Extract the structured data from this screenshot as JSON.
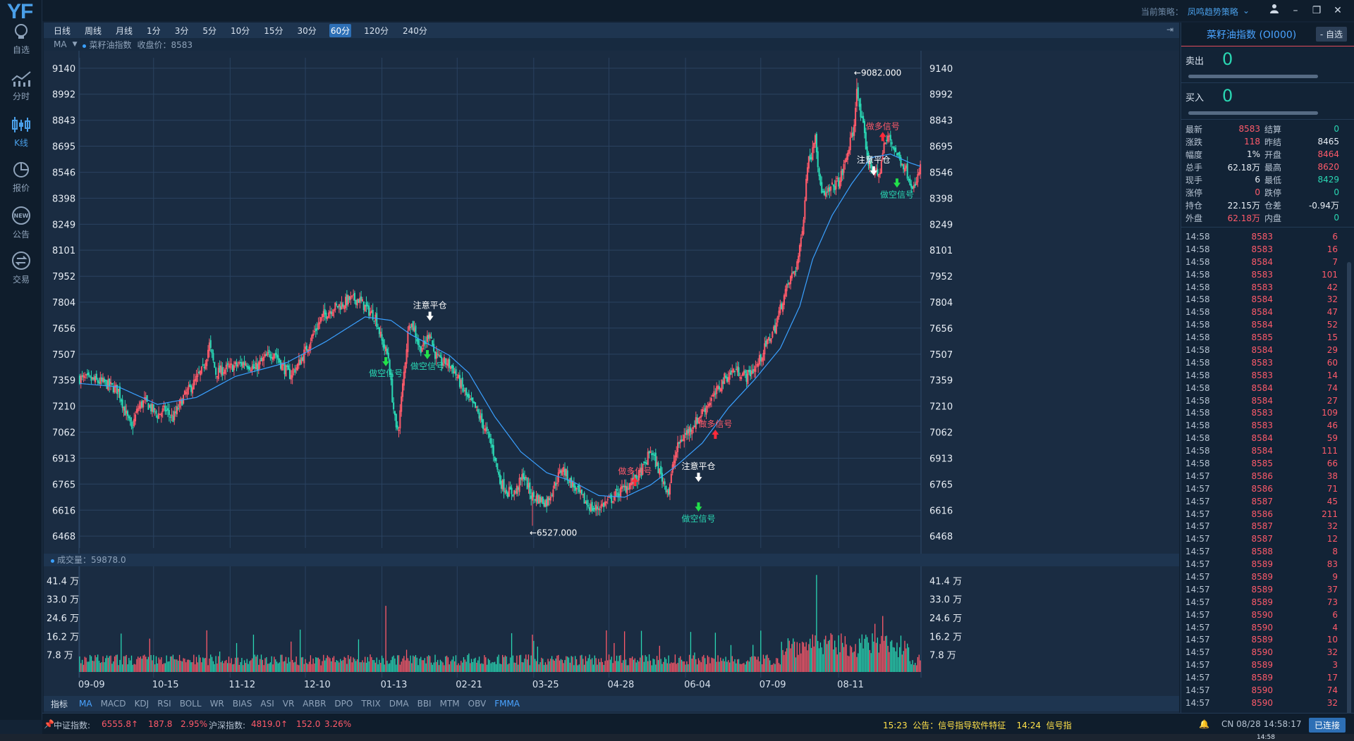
{
  "app": {
    "logo": "YF"
  },
  "sidebar": {
    "items": [
      {
        "label": "自选",
        "icon": "lightbulb-icon"
      },
      {
        "label": "分时",
        "icon": "line-chart-icon"
      },
      {
        "label": "K线",
        "icon": "candlestick-icon",
        "active": true
      },
      {
        "label": "报价",
        "icon": "pie-chart-icon"
      },
      {
        "label": "公告",
        "icon": "new-badge-icon"
      },
      {
        "label": "交易",
        "icon": "exchange-icon"
      }
    ]
  },
  "topbar": {
    "strategy_label": "当前策略：",
    "strategy_value": "凤鸣趋势策略"
  },
  "periods": [
    "日线",
    "周线",
    "月线",
    "1分",
    "3分",
    "5分",
    "10分",
    "15分",
    "30分",
    "60分",
    "120分",
    "240分"
  ],
  "active_period": "60分",
  "ma_bar": {
    "label": "MA",
    "series": "菜籽油指数",
    "close_label": "收盘价：8583"
  },
  "volume_bar": {
    "label": "成交量：59878.0"
  },
  "indicators": [
    "指标",
    "MA",
    "MACD",
    "KDJ",
    "RSI",
    "BOLL",
    "WR",
    "BIAS",
    "ASI",
    "VR",
    "ARBR",
    "DPO",
    "TRIX",
    "DMA",
    "BBI",
    "MTM",
    "OBV",
    "FMMA"
  ],
  "active_indicator": "MA",
  "chart_data": {
    "type": "candlestick",
    "title": "菜籽油指数",
    "x_tick_labels": [
      "09-09",
      "10-15",
      "11-12",
      "12-10",
      "01-13",
      "02-21",
      "03-25",
      "04-28",
      "06-04",
      "07-09",
      "08-11"
    ],
    "y_ticks": [
      9140,
      8992,
      8843,
      8695,
      8546,
      8398,
      8249,
      8101,
      7952,
      7804,
      7656,
      7507,
      7359,
      7210,
      7062,
      6913,
      6765,
      6616,
      6468
    ],
    "ylim": [
      6400,
      9200
    ],
    "close_path": [
      [
        0,
        7370
      ],
      [
        10,
        7360
      ],
      [
        20,
        7340
      ],
      [
        30,
        7300
      ],
      [
        35,
        7180
      ],
      [
        40,
        7080
      ],
      [
        45,
        7200
      ],
      [
        50,
        7240
      ],
      [
        55,
        7200
      ],
      [
        60,
        7160
      ],
      [
        66,
        7190
      ],
      [
        72,
        7140
      ],
      [
        80,
        7260
      ],
      [
        88,
        7340
      ],
      [
        95,
        7420
      ],
      [
        100,
        7560
      ],
      [
        105,
        7400
      ],
      [
        112,
        7420
      ],
      [
        120,
        7440
      ],
      [
        128,
        7460
      ],
      [
        135,
        7420
      ],
      [
        142,
        7480
      ],
      [
        150,
        7520
      ],
      [
        156,
        7440
      ],
      [
        162,
        7390
      ],
      [
        168,
        7440
      ],
      [
        175,
        7540
      ],
      [
        180,
        7620
      ],
      [
        187,
        7720
      ],
      [
        195,
        7770
      ],
      [
        202,
        7790
      ],
      [
        208,
        7820
      ],
      [
        215,
        7820
      ],
      [
        222,
        7760
      ],
      [
        228,
        7720
      ],
      [
        233,
        7580
      ],
      [
        238,
        7490
      ],
      [
        241,
        7260
      ],
      [
        244,
        7070
      ],
      [
        246,
        7100
      ],
      [
        250,
        7400
      ],
      [
        254,
        7700
      ],
      [
        258,
        7650
      ],
      [
        262,
        7540
      ],
      [
        266,
        7560
      ],
      [
        270,
        7640
      ],
      [
        273,
        7520
      ],
      [
        278,
        7460
      ],
      [
        283,
        7460
      ],
      [
        288,
        7420
      ],
      [
        294,
        7330
      ],
      [
        300,
        7240
      ],
      [
        305,
        7200
      ],
      [
        310,
        7120
      ],
      [
        316,
        7020
      ],
      [
        320,
        6920
      ],
      [
        324,
        6780
      ],
      [
        330,
        6720
      ],
      [
        336,
        6720
      ],
      [
        342,
        6820
      ],
      [
        348,
        6700
      ],
      [
        354,
        6680
      ],
      [
        360,
        6660
      ],
      [
        366,
        6760
      ],
      [
        372,
        6860
      ],
      [
        378,
        6780
      ],
      [
        384,
        6720
      ],
      [
        390,
        6660
      ],
      [
        396,
        6620
      ],
      [
        402,
        6640
      ],
      [
        410,
        6680
      ],
      [
        416,
        6720
      ],
      [
        423,
        6760
      ],
      [
        430,
        6800
      ],
      [
        436,
        6880
      ],
      [
        440,
        6960
      ],
      [
        445,
        6870
      ],
      [
        450,
        6780
      ],
      [
        454,
        6720
      ],
      [
        458,
        6900
      ],
      [
        462,
        7000
      ],
      [
        468,
        7060
      ],
      [
        475,
        7120
      ],
      [
        482,
        7200
      ],
      [
        490,
        7280
      ],
      [
        496,
        7360
      ],
      [
        505,
        7420
      ],
      [
        514,
        7380
      ],
      [
        522,
        7440
      ],
      [
        528,
        7540
      ],
      [
        536,
        7660
      ],
      [
        542,
        7820
      ],
      [
        548,
        7940
      ],
      [
        552,
        8000
      ],
      [
        555,
        8100
      ],
      [
        558,
        8300
      ],
      [
        561,
        8600
      ],
      [
        564,
        8650
      ],
      [
        567,
        8780
      ],
      [
        570,
        8500
      ],
      [
        574,
        8400
      ],
      [
        580,
        8460
      ],
      [
        586,
        8500
      ],
      [
        590,
        8600
      ],
      [
        594,
        8720
      ],
      [
        597,
        8800
      ],
      [
        599,
        9050
      ],
      [
        601,
        8900
      ],
      [
        604,
        8800
      ],
      [
        608,
        8600
      ],
      [
        612,
        8560
      ],
      [
        616,
        8520
      ],
      [
        620,
        8700
      ],
      [
        624,
        8750
      ],
      [
        628,
        8680
      ],
      [
        632,
        8620
      ],
      [
        636,
        8580
      ],
      [
        640,
        8500
      ],
      [
        644,
        8450
      ],
      [
        648,
        8583
      ]
    ],
    "ma_path": [
      [
        0,
        7340
      ],
      [
        30,
        7320
      ],
      [
        60,
        7220
      ],
      [
        90,
        7260
      ],
      [
        120,
        7380
      ],
      [
        160,
        7460
      ],
      [
        190,
        7580
      ],
      [
        220,
        7720
      ],
      [
        240,
        7700
      ],
      [
        255,
        7620
      ],
      [
        270,
        7560
      ],
      [
        285,
        7500
      ],
      [
        300,
        7400
      ],
      [
        320,
        7150
      ],
      [
        340,
        6950
      ],
      [
        360,
        6830
      ],
      [
        380,
        6780
      ],
      [
        400,
        6700
      ],
      [
        420,
        6690
      ],
      [
        440,
        6760
      ],
      [
        460,
        6870
      ],
      [
        480,
        7000
      ],
      [
        500,
        7200
      ],
      [
        520,
        7360
      ],
      [
        540,
        7540
      ],
      [
        555,
        7780
      ],
      [
        565,
        8050
      ],
      [
        580,
        8300
      ],
      [
        595,
        8480
      ],
      [
        610,
        8630
      ],
      [
        625,
        8650
      ],
      [
        640,
        8600
      ],
      [
        648,
        8580
      ]
    ],
    "annotations": [
      {
        "text": "←9082.000",
        "x": 599,
        "y": 9082,
        "color": "#ffffff"
      },
      {
        "text": "←6527.000",
        "x": 349,
        "y": 6527,
        "color": "#ffffff"
      },
      {
        "text": "做多信号",
        "x": 619,
        "y": 8800,
        "color": "#ff5a6a"
      },
      {
        "text": "注意平仓",
        "x": 612,
        "y": 8600,
        "color": "#ffffff"
      },
      {
        "text": "做空信号",
        "x": 630,
        "y": 8450,
        "color": "#2ad7b3"
      },
      {
        "text": "注意平仓",
        "x": 270,
        "y": 7770,
        "color": "#ffffff"
      },
      {
        "text": "做空信号",
        "x": 236,
        "y": 7430,
        "color": "#2ad7b3"
      },
      {
        "text": "做空信号",
        "x": 268,
        "y": 7470,
        "color": "#2ad7b3"
      },
      {
        "text": "做多信号",
        "x": 490,
        "y": 7100,
        "color": "#ff5a6a"
      },
      {
        "text": "做多信号",
        "x": 428,
        "y": 6830,
        "color": "#ff5a6a"
      },
      {
        "text": "注意平仓",
        "x": 477,
        "y": 6850,
        "color": "#ffffff"
      },
      {
        "text": "做空信号",
        "x": 477,
        "y": 6600,
        "color": "#2ad7b3"
      }
    ],
    "volume_ticks": [
      "41.4 万",
      "33.0 万",
      "24.6 万",
      "16.2 万",
      "7.8 万"
    ],
    "volume_max": 460000
  },
  "right": {
    "title": "菜籽油指数 (OI000)",
    "fav_button": "- 自选",
    "sell_label": "卖出",
    "sell_val": "0",
    "buy_label": "买入",
    "buy_val": "0",
    "quote": [
      [
        {
          "k": "最新",
          "v": "8583",
          "c": "red"
        },
        {
          "k": "结算",
          "v": "0",
          "c": "green"
        }
      ],
      [
        {
          "k": "涨跌",
          "v": "118",
          "c": "red"
        },
        {
          "k": "昨结",
          "v": "8465",
          "c": "white"
        }
      ],
      [
        {
          "k": "幅度",
          "v": "1%",
          "c": "white"
        },
        {
          "k": "开盘",
          "v": "8464",
          "c": "red"
        }
      ],
      [
        {
          "k": "总手",
          "v": "62.18万",
          "c": "white"
        },
        {
          "k": "最高",
          "v": "8620",
          "c": "red"
        }
      ],
      [
        {
          "k": "现手",
          "v": "6",
          "c": "white"
        },
        {
          "k": "最低",
          "v": "8429",
          "c": "green"
        }
      ],
      [
        {
          "k": "涨停",
          "v": "0",
          "c": "red"
        },
        {
          "k": "跌停",
          "v": "0",
          "c": "green"
        }
      ],
      [
        {
          "k": "持仓",
          "v": "22.15万",
          "c": "white"
        },
        {
          "k": "仓差",
          "v": "-0.94万",
          "c": "white"
        }
      ],
      [
        {
          "k": "外盘",
          "v": "62.18万",
          "c": "red"
        },
        {
          "k": "内盘",
          "v": "0",
          "c": "green"
        }
      ]
    ],
    "ticks": [
      [
        "14:58",
        "8583",
        "6"
      ],
      [
        "14:58",
        "8583",
        "16"
      ],
      [
        "14:58",
        "8584",
        "7"
      ],
      [
        "14:58",
        "8583",
        "101"
      ],
      [
        "14:58",
        "8583",
        "42"
      ],
      [
        "14:58",
        "8584",
        "32"
      ],
      [
        "14:58",
        "8584",
        "47"
      ],
      [
        "14:58",
        "8584",
        "52"
      ],
      [
        "14:58",
        "8585",
        "15"
      ],
      [
        "14:58",
        "8584",
        "29"
      ],
      [
        "14:58",
        "8583",
        "60"
      ],
      [
        "14:58",
        "8583",
        "14"
      ],
      [
        "14:58",
        "8584",
        "74"
      ],
      [
        "14:58",
        "8584",
        "27"
      ],
      [
        "14:58",
        "8583",
        "109"
      ],
      [
        "14:58",
        "8583",
        "46"
      ],
      [
        "14:58",
        "8584",
        "59"
      ],
      [
        "14:58",
        "8584",
        "111"
      ],
      [
        "14:58",
        "8585",
        "66"
      ],
      [
        "14:57",
        "8586",
        "38"
      ],
      [
        "14:57",
        "8586",
        "71"
      ],
      [
        "14:57",
        "8587",
        "45"
      ],
      [
        "14:57",
        "8586",
        "211"
      ],
      [
        "14:57",
        "8587",
        "32"
      ],
      [
        "14:57",
        "8587",
        "12"
      ],
      [
        "14:57",
        "8588",
        "8"
      ],
      [
        "14:57",
        "8589",
        "83"
      ],
      [
        "14:57",
        "8589",
        "9"
      ],
      [
        "14:57",
        "8589",
        "37"
      ],
      [
        "14:57",
        "8589",
        "73"
      ],
      [
        "14:57",
        "8590",
        "6"
      ],
      [
        "14:57",
        "8590",
        "4"
      ],
      [
        "14:57",
        "8589",
        "10"
      ],
      [
        "14:57",
        "8590",
        "32"
      ],
      [
        "14:57",
        "8589",
        "3"
      ],
      [
        "14:57",
        "8589",
        "17"
      ],
      [
        "14:57",
        "8590",
        "74"
      ],
      [
        "14:57",
        "8590",
        "32"
      ]
    ]
  },
  "status": {
    "zz_label": "中证指数:",
    "zz_val": "6555.8↑",
    "zz_chg": "187.8",
    "zz_pct": "2.95%",
    "hs_label": "沪深指数:",
    "hs_val": "4819.0↑",
    "hs_chg": "152.0",
    "hs_pct": "3.26%",
    "notice": "15:23  公告：信号指导软件特征    14:24  信号指",
    "clock": "CN 08/28 14:58:17",
    "conn": "已连接",
    "taskbar_time": "14:58"
  }
}
